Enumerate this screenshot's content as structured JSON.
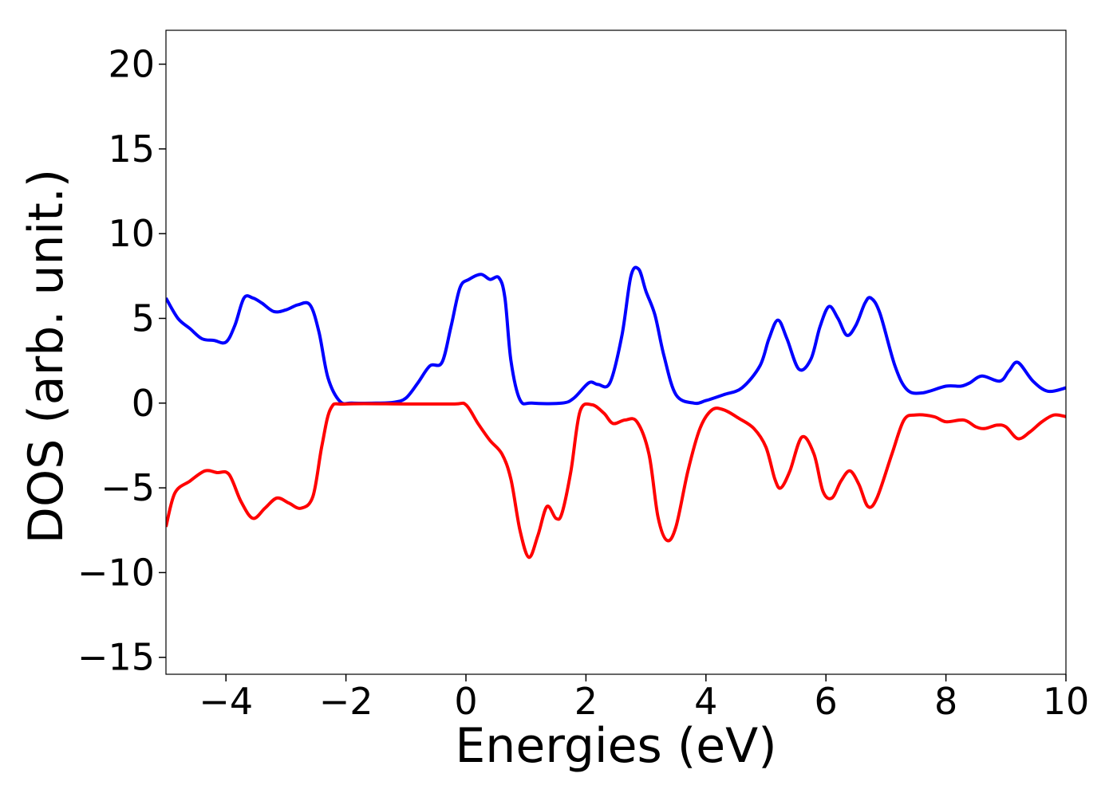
{
  "chart_data": {
    "type": "line",
    "title": "",
    "xlabel": "Energies (eV)",
    "ylabel": "DOS (arb. unit.)",
    "xlim": [
      -5,
      10
    ],
    "ylim": [
      -16,
      22
    ],
    "x_ticks": [
      -4,
      -2,
      0,
      2,
      4,
      6,
      8,
      10
    ],
    "x_tick_labels": [
      "−4",
      "−2",
      "0",
      "2",
      "4",
      "6",
      "8",
      "10"
    ],
    "y_ticks": [
      -15,
      -10,
      -5,
      0,
      5,
      10,
      15,
      20
    ],
    "y_tick_labels": [
      "−15",
      "−10",
      "−5",
      "0",
      "5",
      "10",
      "15",
      "20"
    ],
    "grid": false,
    "legend": "none",
    "series": [
      {
        "color": "#0000ff",
        "points": [
          [
            -5.0,
            6.2
          ],
          [
            -4.8,
            5.0
          ],
          [
            -4.6,
            4.4
          ],
          [
            -4.4,
            3.8
          ],
          [
            -4.2,
            3.7
          ],
          [
            -4.0,
            3.6
          ],
          [
            -3.85,
            4.6
          ],
          [
            -3.7,
            6.2
          ],
          [
            -3.55,
            6.2
          ],
          [
            -3.4,
            5.9
          ],
          [
            -3.2,
            5.4
          ],
          [
            -3.0,
            5.5
          ],
          [
            -2.8,
            5.8
          ],
          [
            -2.6,
            5.8
          ],
          [
            -2.45,
            4.2
          ],
          [
            -2.3,
            1.5
          ],
          [
            -2.1,
            0.1
          ],
          [
            -1.9,
            0.0
          ],
          [
            -1.5,
            0.0
          ],
          [
            -1.2,
            0.05
          ],
          [
            -1.0,
            0.3
          ],
          [
            -0.8,
            1.2
          ],
          [
            -0.6,
            2.2
          ],
          [
            -0.4,
            2.4
          ],
          [
            -0.25,
            4.5
          ],
          [
            -0.1,
            6.8
          ],
          [
            0.05,
            7.3
          ],
          [
            0.25,
            7.6
          ],
          [
            0.4,
            7.3
          ],
          [
            0.55,
            7.4
          ],
          [
            0.65,
            6.2
          ],
          [
            0.75,
            2.5
          ],
          [
            0.9,
            0.2
          ],
          [
            1.1,
            0.0
          ],
          [
            1.6,
            0.0
          ],
          [
            1.8,
            0.3
          ],
          [
            2.05,
            1.2
          ],
          [
            2.2,
            1.1
          ],
          [
            2.4,
            1.2
          ],
          [
            2.6,
            4.0
          ],
          [
            2.75,
            7.5
          ],
          [
            2.88,
            7.9
          ],
          [
            3.0,
            6.6
          ],
          [
            3.15,
            5.2
          ],
          [
            3.3,
            2.8
          ],
          [
            3.5,
            0.5
          ],
          [
            3.8,
            0.0
          ],
          [
            4.0,
            0.15
          ],
          [
            4.3,
            0.5
          ],
          [
            4.6,
            0.9
          ],
          [
            4.9,
            2.2
          ],
          [
            5.05,
            3.8
          ],
          [
            5.2,
            4.9
          ],
          [
            5.35,
            3.8
          ],
          [
            5.55,
            2.0
          ],
          [
            5.75,
            2.6
          ],
          [
            5.9,
            4.5
          ],
          [
            6.05,
            5.7
          ],
          [
            6.2,
            5.0
          ],
          [
            6.35,
            4.0
          ],
          [
            6.5,
            4.6
          ],
          [
            6.65,
            5.9
          ],
          [
            6.75,
            6.2
          ],
          [
            6.9,
            5.3
          ],
          [
            7.15,
            2.2
          ],
          [
            7.35,
            0.8
          ],
          [
            7.6,
            0.6
          ],
          [
            8.0,
            1.0
          ],
          [
            8.25,
            1.0
          ],
          [
            8.4,
            1.2
          ],
          [
            8.6,
            1.6
          ],
          [
            8.9,
            1.3
          ],
          [
            9.05,
            1.9
          ],
          [
            9.2,
            2.4
          ],
          [
            9.45,
            1.3
          ],
          [
            9.7,
            0.7
          ],
          [
            10.0,
            0.9
          ]
        ]
      },
      {
        "color": "#ff0000",
        "points": [
          [
            -5.0,
            -7.3
          ],
          [
            -4.85,
            -5.3
          ],
          [
            -4.6,
            -4.6
          ],
          [
            -4.35,
            -4.0
          ],
          [
            -4.15,
            -4.1
          ],
          [
            -3.95,
            -4.2
          ],
          [
            -3.75,
            -5.8
          ],
          [
            -3.55,
            -6.8
          ],
          [
            -3.35,
            -6.2
          ],
          [
            -3.15,
            -5.6
          ],
          [
            -2.95,
            -5.9
          ],
          [
            -2.75,
            -6.2
          ],
          [
            -2.55,
            -5.5
          ],
          [
            -2.4,
            -2.5
          ],
          [
            -2.25,
            -0.3
          ],
          [
            -2.0,
            -0.05
          ],
          [
            -1.0,
            -0.05
          ],
          [
            -0.2,
            -0.05
          ],
          [
            0.0,
            -0.1
          ],
          [
            0.2,
            -1.2
          ],
          [
            0.4,
            -2.2
          ],
          [
            0.6,
            -3.0
          ],
          [
            0.75,
            -4.5
          ],
          [
            0.9,
            -7.5
          ],
          [
            1.05,
            -9.1
          ],
          [
            1.2,
            -7.8
          ],
          [
            1.35,
            -6.1
          ],
          [
            1.5,
            -6.8
          ],
          [
            1.6,
            -6.5
          ],
          [
            1.75,
            -4.0
          ],
          [
            1.9,
            -0.5
          ],
          [
            2.1,
            -0.1
          ],
          [
            2.3,
            -0.6
          ],
          [
            2.45,
            -1.2
          ],
          [
            2.65,
            -1.0
          ],
          [
            2.85,
            -1.1
          ],
          [
            3.05,
            -3.0
          ],
          [
            3.2,
            -6.7
          ],
          [
            3.35,
            -8.1
          ],
          [
            3.5,
            -7.3
          ],
          [
            3.7,
            -4.0
          ],
          [
            3.9,
            -1.5
          ],
          [
            4.1,
            -0.4
          ],
          [
            4.3,
            -0.4
          ],
          [
            4.55,
            -0.9
          ],
          [
            4.8,
            -1.5
          ],
          [
            5.0,
            -2.6
          ],
          [
            5.15,
            -4.5
          ],
          [
            5.25,
            -5.0
          ],
          [
            5.4,
            -4.0
          ],
          [
            5.6,
            -2.0
          ],
          [
            5.8,
            -3.0
          ],
          [
            5.95,
            -5.2
          ],
          [
            6.1,
            -5.6
          ],
          [
            6.25,
            -4.6
          ],
          [
            6.4,
            -4.0
          ],
          [
            6.55,
            -4.8
          ],
          [
            6.7,
            -6.1
          ],
          [
            6.85,
            -5.6
          ],
          [
            7.1,
            -3.0
          ],
          [
            7.3,
            -1.0
          ],
          [
            7.5,
            -0.7
          ],
          [
            7.8,
            -0.8
          ],
          [
            8.0,
            -1.1
          ],
          [
            8.3,
            -1.0
          ],
          [
            8.5,
            -1.4
          ],
          [
            8.65,
            -1.5
          ],
          [
            8.85,
            -1.3
          ],
          [
            9.0,
            -1.4
          ],
          [
            9.2,
            -2.1
          ],
          [
            9.4,
            -1.7
          ],
          [
            9.6,
            -1.1
          ],
          [
            9.8,
            -0.7
          ],
          [
            10.0,
            -0.8
          ]
        ]
      }
    ]
  }
}
